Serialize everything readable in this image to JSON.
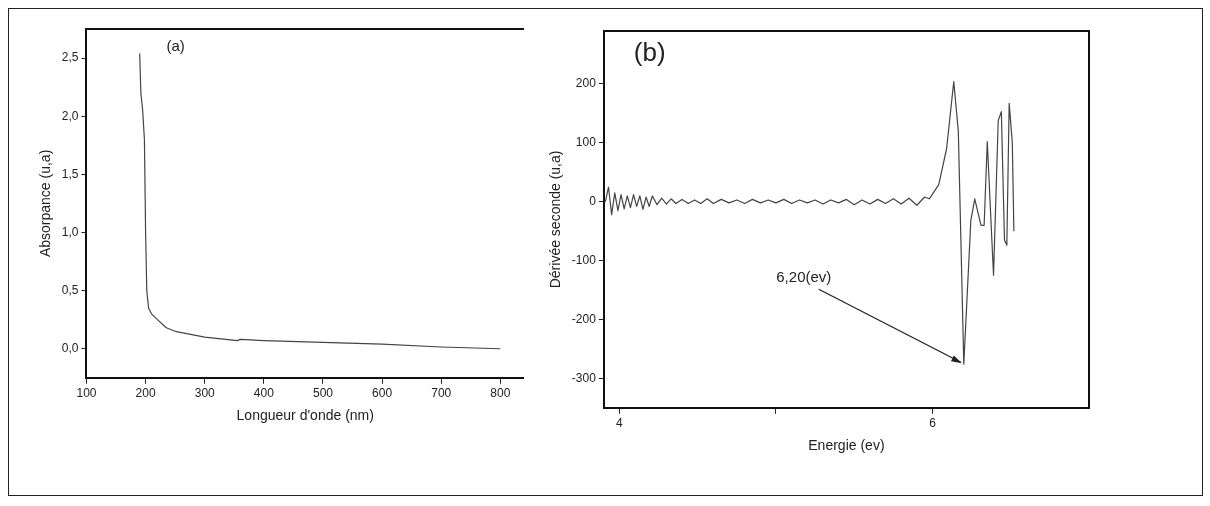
{
  "chart_data": [
    {
      "type": "line",
      "title": "(a)",
      "xlabel": "Longueur d'onde (nm)",
      "ylabel": "Absorpance (u,a)",
      "color": "#444444",
      "marker": "none",
      "x": [
        190,
        192,
        195,
        198,
        200,
        202,
        205,
        210,
        220,
        235,
        250,
        300,
        355,
        360,
        400,
        500,
        600,
        700,
        800
      ],
      "values": [
        2.54,
        2.2,
        2.05,
        1.8,
        1.0,
        0.5,
        0.35,
        0.3,
        0.25,
        0.18,
        0.15,
        0.1,
        0.07,
        0.08,
        0.07,
        0.055,
        0.04,
        0.015,
        0.0
      ],
      "xlim": [
        100,
        840
      ],
      "xticks": [
        100,
        200,
        300,
        400,
        500,
        600,
        700,
        800
      ],
      "ylim": [
        -0.25,
        2.75
      ],
      "yticks": [
        {
          "value": 0,
          "label": "0,0"
        },
        {
          "value": 0.5,
          "label": "0,5"
        },
        {
          "value": 1,
          "label": "1,0"
        },
        {
          "value": 1.5,
          "label": "1,5"
        },
        {
          "value": 2,
          "label": "2,0"
        },
        {
          "value": 2.5,
          "label": "2,5"
        }
      ]
    },
    {
      "type": "line",
      "title": "(b)",
      "xlabel": "Energie (ev)",
      "ylabel": "Dérivée seconde (u,a)",
      "color": "#444444",
      "marker": "none",
      "x": [
        3.91,
        3.93,
        3.95,
        3.97,
        3.99,
        4.01,
        4.03,
        4.05,
        4.07,
        4.09,
        4.11,
        4.13,
        4.15,
        4.17,
        4.19,
        4.21,
        4.24,
        4.27,
        4.3,
        4.33,
        4.36,
        4.4,
        4.44,
        4.48,
        4.52,
        4.56,
        4.6,
        4.65,
        4.7,
        4.75,
        4.8,
        4.85,
        4.9,
        4.95,
        5.0,
        5.05,
        5.1,
        5.15,
        5.2,
        5.25,
        5.3,
        5.35,
        5.4,
        5.45,
        5.5,
        5.55,
        5.6,
        5.65,
        5.7,
        5.75,
        5.8,
        5.85,
        5.9,
        5.95,
        5.98,
        6.04,
        6.09,
        6.136,
        6.165,
        6.2,
        6.245,
        6.27,
        6.31,
        6.33,
        6.35,
        6.39,
        6.42,
        6.44,
        6.46,
        6.475,
        6.49,
        6.51,
        6.52
      ],
      "values": [
        0,
        25,
        -22,
        15,
        -15,
        12,
        -12,
        10,
        -10,
        12,
        -8,
        10,
        -13,
        8,
        -8,
        10,
        -5,
        6,
        -4,
        5,
        -3,
        4,
        -3,
        3,
        -3,
        5,
        -3,
        4,
        -2,
        3,
        -3,
        4,
        -2,
        3,
        -2,
        4,
        -3,
        3,
        -2,
        3,
        -4,
        3,
        -2,
        4,
        -5,
        3,
        -4,
        4,
        -3,
        5,
        -4,
        6,
        -6,
        8,
        5,
        29,
        90,
        204,
        120,
        -276,
        -32,
        5,
        -40,
        -40,
        102,
        -125,
        138,
        153,
        -65,
        -74,
        167,
        100,
        -50
      ],
      "xlim": [
        3.9,
        7.0
      ],
      "xticks": [
        4,
        {
          "value": 5,
          "label": null
        },
        6
      ],
      "ylim": [
        -350,
        290
      ],
      "yticks": [
        -300,
        -200,
        -100,
        0,
        100,
        200
      ],
      "annotations": [
        {
          "text": "6,20(ev)",
          "x": 6.2,
          "y": -276
        }
      ]
    }
  ]
}
